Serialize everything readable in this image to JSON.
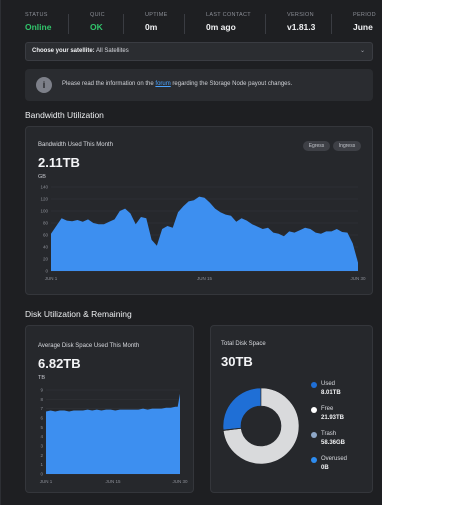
{
  "status_bar": [
    {
      "label": "STATUS",
      "value": "Online",
      "color": "#31c46b"
    },
    {
      "label": "QUIC",
      "value": "OK",
      "color": "#31c46b"
    },
    {
      "label": "UPTIME",
      "value": "0m",
      "color": "#f1f2f4"
    },
    {
      "label": "LAST CONTACT",
      "value": "0m ago",
      "color": "#f1f2f4"
    },
    {
      "label": "VERSION",
      "value": "v1.81.3",
      "color": "#f1f2f4"
    },
    {
      "label": "PERIOD",
      "value": "June",
      "color": "#f1f2f4"
    }
  ],
  "satellite_select": {
    "label": "Choose your satellite:",
    "value": "All Satellites"
  },
  "banner": {
    "text_before": "Please read the information on the ",
    "link": "forum",
    "text_after": " regarding the Storage Node payout changes."
  },
  "bandwidth": {
    "section_title": "Bandwidth Utilization",
    "card_title": "Bandwidth Used This Month",
    "value": "2.11TB",
    "unit": "GB",
    "toggles": [
      "Egress",
      "Ingress"
    ]
  },
  "disk": {
    "section_title": "Disk Utilization & Remaining",
    "card_title": "Average Disk Space Used This Month",
    "value": "6.82TB",
    "unit": "TB"
  },
  "total_disk": {
    "card_title": "Total Disk Space",
    "value": "30TB",
    "legend": [
      {
        "label": "Used",
        "value": "8.01TB",
        "color": "#1f6fd6"
      },
      {
        "label": "Free",
        "value": "21.93TB",
        "color": "#ffffff"
      },
      {
        "label": "Trash",
        "value": "58.36GB",
        "color": "#8fa8c8"
      },
      {
        "label": "Overused",
        "value": "0B",
        "color": "#2d8cf0"
      }
    ]
  },
  "chart_data": [
    {
      "type": "area",
      "ylabel": "GB",
      "ylim": [
        0,
        140
      ],
      "yticks": [
        0,
        20,
        40,
        60,
        80,
        100,
        120,
        140
      ],
      "xticks": [
        "JUN 1",
        "JUN 15",
        "JUN 30"
      ],
      "x_range": [
        1,
        30
      ],
      "series": [
        {
          "color": "#3d8ff0",
          "x": [
            1,
            1.5,
            2,
            2.5,
            3,
            3.5,
            4,
            4.5,
            5,
            5.5,
            6,
            6.5,
            7,
            7.5,
            8,
            8.5,
            9,
            9.5,
            10,
            10.5,
            11,
            11.5,
            12,
            12.5,
            13,
            13.5,
            14,
            14.5,
            15,
            15.5,
            16,
            16.5,
            17,
            17.5,
            18,
            18.5,
            19,
            19.5,
            20,
            20.5,
            21,
            21.5,
            22,
            22.5,
            23,
            23.5,
            24,
            24.5,
            25,
            25.5,
            26,
            26.5,
            27,
            27.5,
            28,
            28.5,
            29,
            29.5,
            30
          ],
          "values": [
            62,
            75,
            88,
            84,
            83,
            85,
            82,
            86,
            80,
            78,
            78,
            82,
            86,
            100,
            104,
            96,
            78,
            90,
            88,
            52,
            42,
            70,
            75,
            72,
            98,
            108,
            116,
            118,
            124,
            122,
            114,
            104,
            98,
            94,
            92,
            82,
            88,
            84,
            78,
            74,
            70,
            72,
            64,
            62,
            58,
            66,
            64,
            68,
            72,
            70,
            64,
            62,
            66,
            66,
            70,
            65,
            64,
            46,
            14
          ]
        }
      ]
    },
    {
      "type": "area",
      "ylabel": "TB",
      "ylim": [
        0,
        9
      ],
      "yticks": [
        0,
        1,
        2,
        3,
        4,
        5,
        6,
        7,
        8,
        9
      ],
      "xticks": [
        "JUN 1",
        "JUN 15",
        "JUN 30"
      ],
      "x_range": [
        1,
        30
      ],
      "series": [
        {
          "color": "#3d8ff0",
          "x": [
            1,
            2,
            3,
            4,
            5,
            6,
            7,
            8,
            9,
            10,
            11,
            12,
            13,
            14,
            15,
            16,
            17,
            18,
            19,
            20,
            21,
            22,
            23,
            24,
            25,
            26,
            27,
            28,
            29,
            29.5,
            30
          ],
          "values": [
            6.7,
            6.8,
            6.7,
            6.8,
            6.8,
            6.7,
            6.8,
            6.8,
            6.8,
            6.9,
            6.8,
            6.9,
            6.8,
            6.9,
            6.9,
            6.8,
            6.9,
            6.9,
            6.9,
            6.9,
            6.9,
            7.0,
            6.9,
            7.0,
            7.0,
            7.0,
            7.1,
            7.1,
            7.2,
            7.2,
            8.6
          ]
        }
      ]
    },
    {
      "type": "pie",
      "categories": [
        "Used",
        "Free",
        "Trash",
        "Overused"
      ],
      "values": [
        8.01,
        21.93,
        0.05836,
        0
      ],
      "units": [
        "TB",
        "TB",
        "TB",
        "TB"
      ],
      "colors": [
        "#1f6fd6",
        "#d9dadc",
        "#8fa8c8",
        "#2d8cf0"
      ]
    }
  ]
}
